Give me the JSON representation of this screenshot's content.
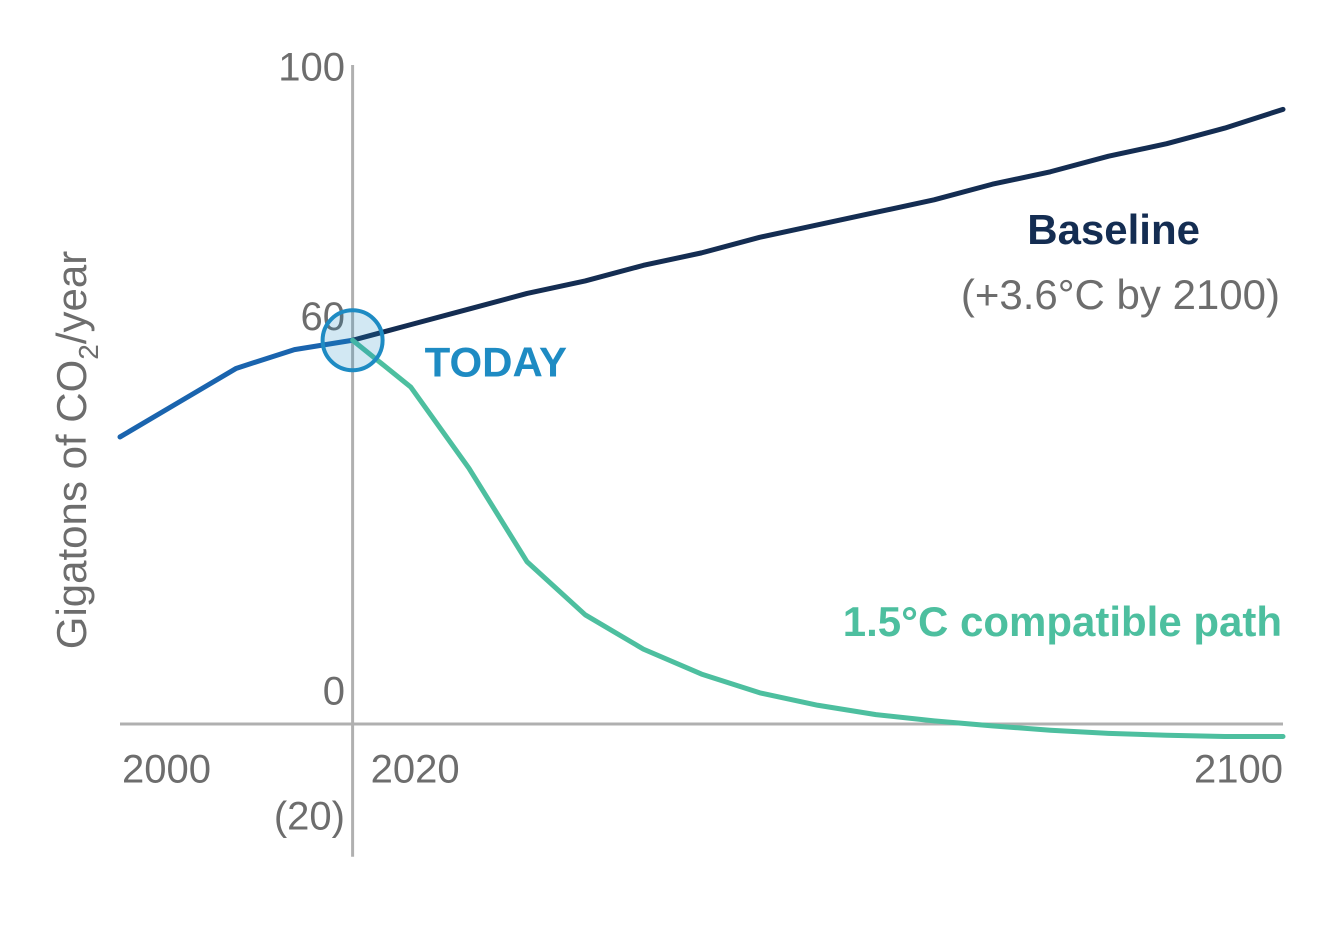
{
  "chart_data": {
    "type": "line",
    "y_label": [
      "Gigatons of CO",
      "2",
      "/year"
    ],
    "x": [
      2000,
      2005,
      2010,
      2015,
      2020,
      2025,
      2030,
      2035,
      2040,
      2045,
      2050,
      2055,
      2060,
      2065,
      2070,
      2075,
      2080,
      2085,
      2090,
      2095,
      2100
    ],
    "series": [
      {
        "color": "#1a64ae",
        "values": [
          46,
          51.5,
          57,
          60,
          61.5,
          null,
          null,
          null,
          null,
          null,
          null,
          null,
          null,
          null,
          null,
          null,
          null,
          null,
          null,
          null,
          null
        ]
      },
      {
        "name": "Baseline",
        "color": "#142d52",
        "values": [
          null,
          null,
          null,
          null,
          61.5,
          64,
          66.5,
          69,
          71,
          73.5,
          75.5,
          78,
          80,
          82,
          84,
          86.5,
          88.5,
          91,
          93,
          95.5,
          98.5
        ]
      },
      {
        "name": "1.5°C compatible path",
        "color": "#4dbf9f",
        "values": [
          null,
          null,
          null,
          null,
          61.5,
          54,
          41,
          26,
          17.5,
          12,
          8,
          5,
          3,
          1.5,
          0.5,
          -0.3,
          -1,
          -1.5,
          -1.8,
          -2,
          -2
        ]
      }
    ],
    "baseline_note": "(+3.6°C by 2100)",
    "today": {
      "label": "TODAY",
      "x": 2020,
      "y": 61.5,
      "color": "#1e8bc3"
    },
    "xlim": [
      2000,
      2100
    ],
    "xticks": [
      2000,
      2020,
      2100
    ],
    "ylim": [
      -20,
      100
    ],
    "yticks": [
      100,
      60,
      0,
      {
        "value": -20,
        "label": "(20)"
      }
    ]
  }
}
